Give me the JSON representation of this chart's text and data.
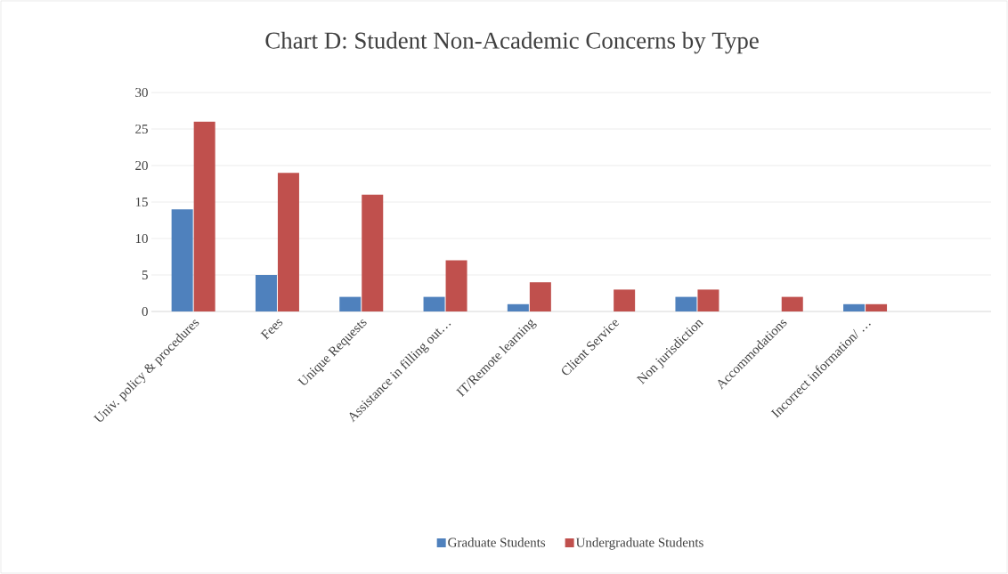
{
  "chart_data": {
    "type": "bar",
    "title": "Chart D: Student Non-Academic Concerns by Type",
    "categories": [
      "Univ. policy & procedures",
      "Fees",
      "Unique Requests",
      "Assistance in filling out…",
      "IT/Remote learning",
      "Client Service",
      "Non jurisdiction",
      "Accommodations",
      "Incorrect information/ …",
      null
    ],
    "series": [
      {
        "name": "Graduate Students",
        "color": "#4f81bd",
        "values": [
          14,
          5,
          2,
          2,
          1,
          null,
          2,
          null,
          1,
          null
        ]
      },
      {
        "name": "Undergraduate Students",
        "color": "#c0504d",
        "values": [
          26,
          19,
          16,
          7,
          4,
          3,
          3,
          2,
          1,
          null
        ]
      }
    ],
    "ylim": [
      0,
      30
    ],
    "yticks": [
      0,
      5,
      10,
      15,
      20,
      25,
      30
    ],
    "grid": "y",
    "legend": "bottom"
  }
}
